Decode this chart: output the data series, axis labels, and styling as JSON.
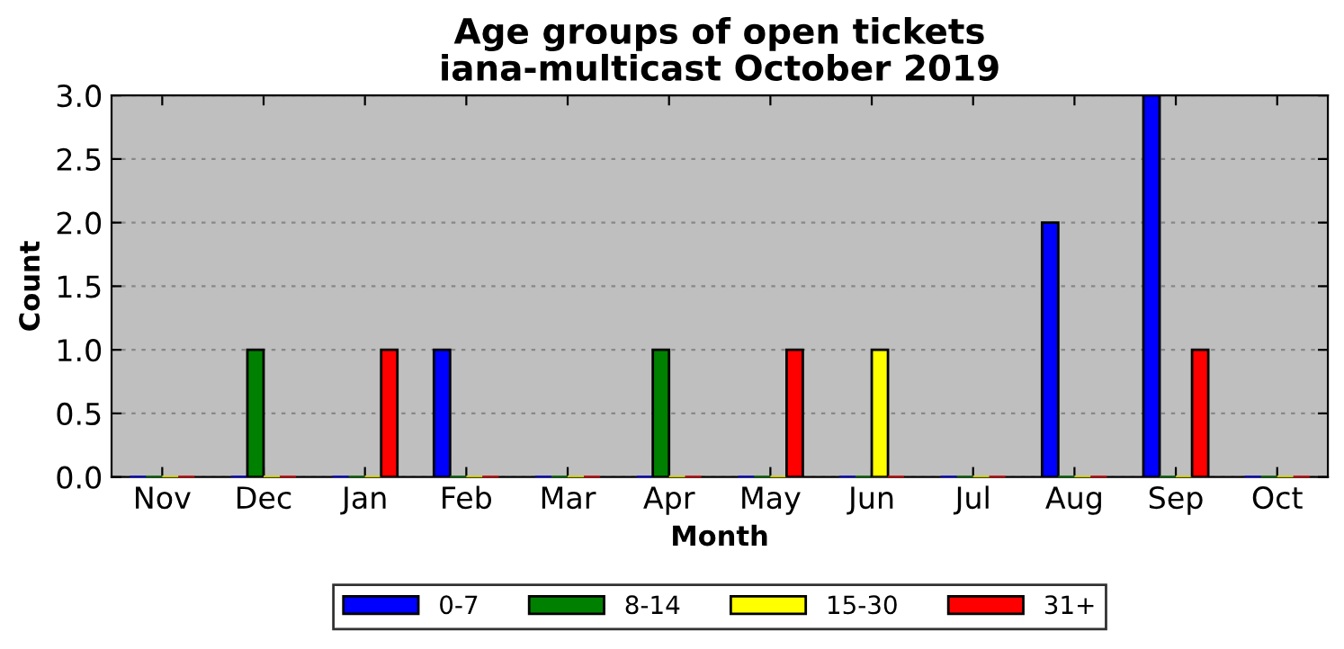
{
  "chart_data": {
    "type": "bar",
    "title": "Age groups of open tickets\niana-multicast October 2019",
    "xlabel": "Month",
    "ylabel": "Count",
    "categories": [
      "Nov",
      "Dec",
      "Jan",
      "Feb",
      "Mar",
      "Apr",
      "May",
      "Jun",
      "Jul",
      "Aug",
      "Sep",
      "Oct"
    ],
    "series": [
      {
        "name": "0-7",
        "color": "#0000ff",
        "values": [
          0,
          0,
          0,
          1,
          0,
          0,
          0,
          0,
          0,
          2,
          3,
          0
        ]
      },
      {
        "name": "8-14",
        "color": "#008000",
        "values": [
          0,
          1,
          0,
          0,
          0,
          1,
          0,
          0,
          0,
          0,
          0,
          0
        ]
      },
      {
        "name": "15-30",
        "color": "#ffff00",
        "values": [
          0,
          0,
          0,
          0,
          0,
          0,
          0,
          1,
          0,
          0,
          0,
          0
        ]
      },
      {
        "name": "31+",
        "color": "#ff0000",
        "values": [
          0,
          0,
          1,
          0,
          0,
          0,
          1,
          0,
          0,
          0,
          1,
          0
        ]
      }
    ],
    "ylim": [
      0,
      3
    ],
    "yticks": [
      {
        "value": 0,
        "label": "0.0"
      },
      {
        "value": 0.5,
        "label": "0.5"
      },
      {
        "value": 1,
        "label": "1.0"
      },
      {
        "value": 1.5,
        "label": "1.5"
      },
      {
        "value": 2,
        "label": "2.0"
      },
      {
        "value": 2.5,
        "label": "2.5"
      },
      {
        "value": 3,
        "label": "3.0"
      }
    ],
    "grid": "y",
    "legend": "bottom"
  }
}
